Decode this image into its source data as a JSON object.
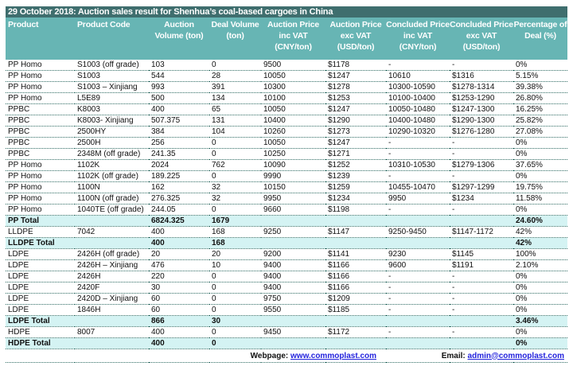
{
  "title": "29 October 2018: Auction sales result for Shenhua’s coal-based cargoes in China",
  "columns": [
    "Product",
    "Product Code",
    "Auction Volume (ton)",
    "Deal Volume (ton)",
    "Auction Price inc VAT (CNY/ton)",
    "Auction Price exc VAT (USD/ton)",
    "Concluded Price inc VAT (CNY/ton)",
    "Concluded Price exc VAT (USD/ton)",
    "Percentage of Deal (%)"
  ],
  "rows": [
    {
      "total": false,
      "cells": [
        "PP Homo",
        "S1003 (off grade)",
        "103",
        "0",
        "9500",
        "$1178",
        "-",
        "-",
        "0%"
      ]
    },
    {
      "total": false,
      "cells": [
        "PP Homo",
        "S1003",
        "544",
        "28",
        "10050",
        "$1247",
        "10610",
        "$1316",
        "5.15%"
      ]
    },
    {
      "total": false,
      "cells": [
        "PP Homo",
        "S1003 – Xinjiang",
        "993",
        "391",
        "10300",
        "$1278",
        "10300-10590",
        "$1278-1314",
        "39.38%"
      ]
    },
    {
      "total": false,
      "cells": [
        "PP Homo",
        "L5E89",
        "500",
        "134",
        "10100",
        "$1253",
        "10100-10400",
        "$1253-1290",
        "26.80%"
      ]
    },
    {
      "total": false,
      "cells": [
        "PPBC",
        "K8003",
        "400",
        "65",
        "10050",
        "$1247",
        "10050-10480",
        "$1247-1300",
        "16.25%"
      ]
    },
    {
      "total": false,
      "cells": [
        "PPBC",
        "K8003- Xinjiang",
        "507.375",
        "131",
        "10400",
        "$1290",
        "10400-10480",
        "$1290-1300",
        "25.82%"
      ]
    },
    {
      "total": false,
      "cells": [
        "PPBC",
        "2500HY",
        "384",
        "104",
        "10260",
        "$1273",
        "10290-10320",
        "$1276-1280",
        "27.08%"
      ]
    },
    {
      "total": false,
      "cells": [
        "PPBC",
        "2500H",
        "256",
        "0",
        "10050",
        "$1247",
        "-",
        "-",
        "0%"
      ]
    },
    {
      "total": false,
      "cells": [
        "PPBC",
        "2348M (off grade)",
        "241.35",
        "0",
        "10250",
        "$1271",
        "-",
        "-",
        "0%"
      ]
    },
    {
      "total": false,
      "cells": [
        "PP Homo",
        "1102K",
        "2024",
        "762",
        "10090",
        "$1252",
        "10310-10530",
        "$1279-1306",
        "37.65%"
      ]
    },
    {
      "total": false,
      "cells": [
        "PP Homo",
        "1102K (off grade)",
        "189.225",
        "0",
        "9990",
        "$1239",
        "-",
        "-",
        "0%"
      ]
    },
    {
      "total": false,
      "cells": [
        "PP Homo",
        "1100N",
        "162",
        "32",
        "10150",
        "$1259",
        "10455-10470",
        "$1297-1299",
        "19.75%"
      ]
    },
    {
      "total": false,
      "cells": [
        "PP Homo",
        "1100N (off grade)",
        "276.325",
        "32",
        "9950",
        "$1234",
        "9950",
        "$1234",
        "11.58%"
      ]
    },
    {
      "total": false,
      "cells": [
        "PP Homo",
        "1040TE (off grade)",
        "244.05",
        "0",
        "9660",
        "$1198",
        "-",
        "-",
        "0%"
      ]
    },
    {
      "total": true,
      "cells": [
        "PP Total",
        "",
        "6824.325",
        "1679",
        "",
        "",
        "",
        "",
        "24.60%"
      ]
    },
    {
      "total": false,
      "cells": [
        "LLDPE",
        "7042",
        "400",
        "168",
        "9250",
        "$1147",
        "9250-9450",
        "$1147-1172",
        "42%"
      ]
    },
    {
      "total": true,
      "cells": [
        "LLDPE Total",
        "",
        "400",
        "168",
        "",
        "",
        "",
        "",
        "42%"
      ]
    },
    {
      "total": false,
      "cells": [
        "LDPE",
        "2426H (off grade)",
        "20",
        "20",
        "9200",
        "$1141",
        "9230",
        "$1145",
        "100%"
      ]
    },
    {
      "total": false,
      "cells": [
        "LDPE",
        "2426H – Xinjiang",
        "476",
        "10",
        "9400",
        "$1166",
        "9600",
        "$1191",
        "2.10%"
      ]
    },
    {
      "total": false,
      "cells": [
        "LDPE",
        "2426H",
        "220",
        "0",
        "9400",
        "$1166",
        "-",
        "-",
        "0%"
      ]
    },
    {
      "total": false,
      "cells": [
        "LDPE",
        "2420F",
        "30",
        "0",
        "9400",
        "$1166",
        "-",
        "-",
        "0%"
      ]
    },
    {
      "total": false,
      "cells": [
        "LDPE",
        "2420D – Xinjiang",
        "60",
        "0",
        "9750",
        "$1209",
        "-",
        "-",
        "0%"
      ]
    },
    {
      "total": false,
      "cells": [
        "LDPE",
        "1846H",
        "60",
        "0",
        "9550",
        "$1185",
        "-",
        "-",
        "0%"
      ]
    },
    {
      "total": true,
      "cells": [
        "LDPE Total",
        "",
        "866",
        "30",
        "",
        "",
        "",
        "",
        "3.46%"
      ]
    },
    {
      "total": false,
      "cells": [
        "HDPE",
        "8007",
        "400",
        "0",
        "9450",
        "$1172",
        "-",
        "-",
        "0%"
      ]
    },
    {
      "total": true,
      "cells": [
        "HDPE Total",
        "",
        "400",
        "0",
        "",
        "",
        "",
        "",
        "0%"
      ]
    }
  ],
  "footer": {
    "webpage_label": "Webpage:",
    "webpage": "www.commoplast.com",
    "email_label": "Email:",
    "email": "admin@commoplast.com"
  },
  "colors": {
    "title_bg": "#3f6e6e",
    "header_bg": "#67b5b4",
    "total_bg": "#d4f3f3"
  }
}
